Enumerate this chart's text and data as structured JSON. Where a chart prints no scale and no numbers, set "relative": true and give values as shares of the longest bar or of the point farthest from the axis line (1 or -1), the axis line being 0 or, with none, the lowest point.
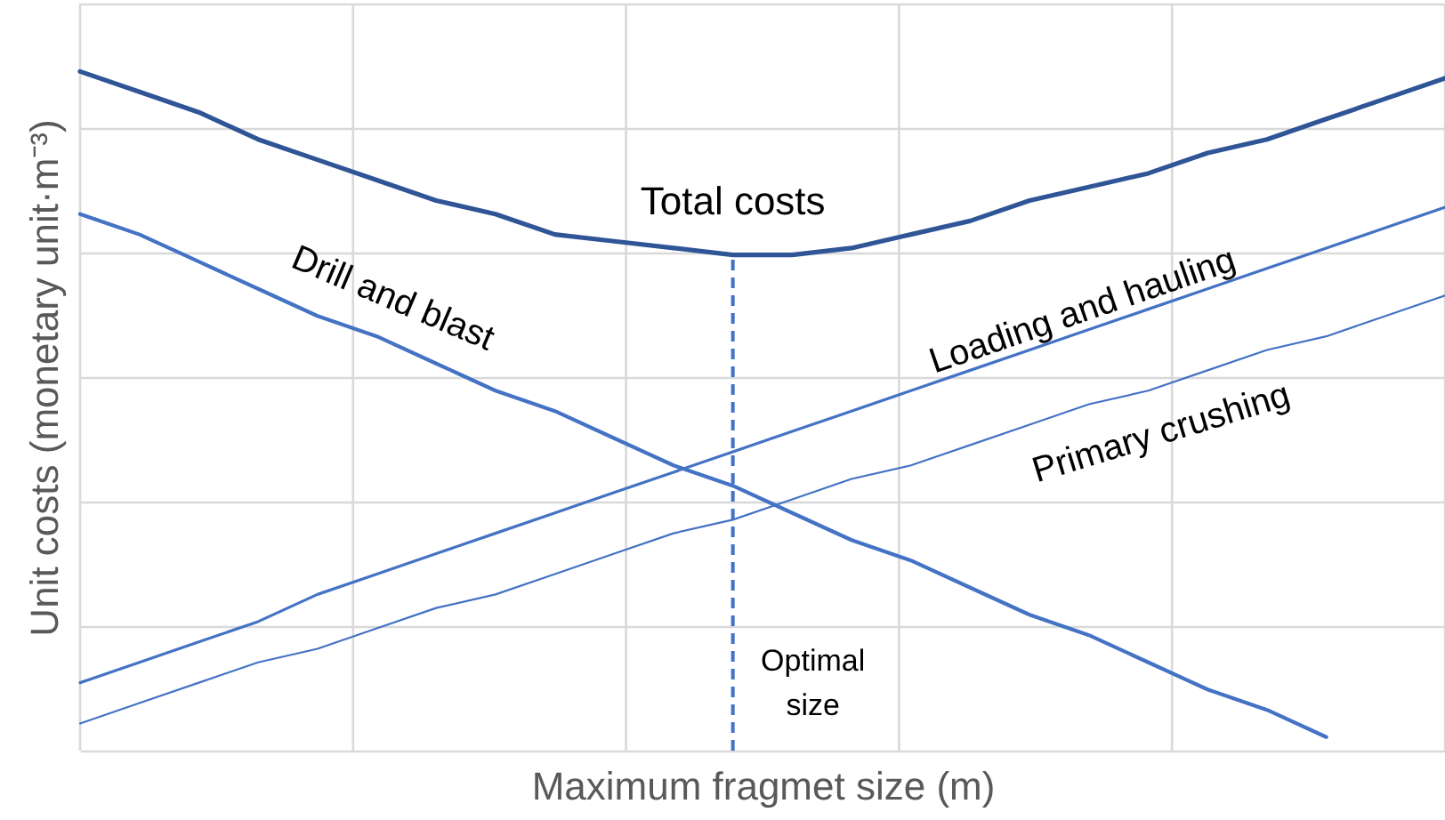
{
  "chart_data": {
    "type": "line",
    "relative": true,
    "xlabel": "Maximum fragmet size (m)",
    "ylabel": "Unit costs (monetary unit·m⁻³)",
    "grid": true,
    "annotations": [
      "Optimal size"
    ],
    "categories": [
      null,
      null,
      null,
      null,
      null,
      null,
      null,
      null,
      null,
      null,
      null,
      null,
      null,
      null,
      null,
      null,
      null,
      null,
      null,
      null,
      null,
      null,
      null,
      null
    ],
    "series": [
      {
        "name": "Total costs",
        "color": "#2f5597",
        "values": [
          1.0,
          0.97,
          0.94,
          0.9,
          0.87,
          0.84,
          0.81,
          0.79,
          0.76,
          0.75,
          0.74,
          0.73,
          0.73,
          0.74,
          0.76,
          0.78,
          0.81,
          0.83,
          0.85,
          0.88,
          0.9,
          0.93,
          0.96,
          0.99
        ]
      },
      {
        "name": "Drill and blast",
        "color": "#4472c4",
        "values": [
          0.79,
          0.76,
          0.72,
          0.68,
          0.64,
          0.61,
          0.57,
          0.53,
          0.5,
          0.46,
          0.42,
          0.39,
          0.35,
          0.31,
          0.28,
          0.24,
          0.2,
          0.17,
          0.13,
          0.09,
          0.06,
          0.02,
          null,
          null
        ]
      },
      {
        "name": "Loading and hauling",
        "color": "#4472c4",
        "values": [
          0.1,
          0.13,
          0.16,
          0.19,
          0.23,
          0.26,
          0.29,
          0.32,
          0.35,
          0.38,
          0.41,
          0.44,
          0.47,
          0.5,
          0.53,
          0.56,
          0.59,
          0.62,
          0.65,
          0.68,
          0.71,
          0.74,
          0.77,
          0.8
        ]
      },
      {
        "name": "Primary crushing",
        "color": "#4472c4",
        "values": [
          0.04,
          0.07,
          0.1,
          0.13,
          0.15,
          0.18,
          0.21,
          0.23,
          0.26,
          0.29,
          0.32,
          0.34,
          0.37,
          0.4,
          0.42,
          0.45,
          0.48,
          0.51,
          0.53,
          0.56,
          0.59,
          0.61,
          0.64,
          0.67
        ]
      }
    ]
  }
}
